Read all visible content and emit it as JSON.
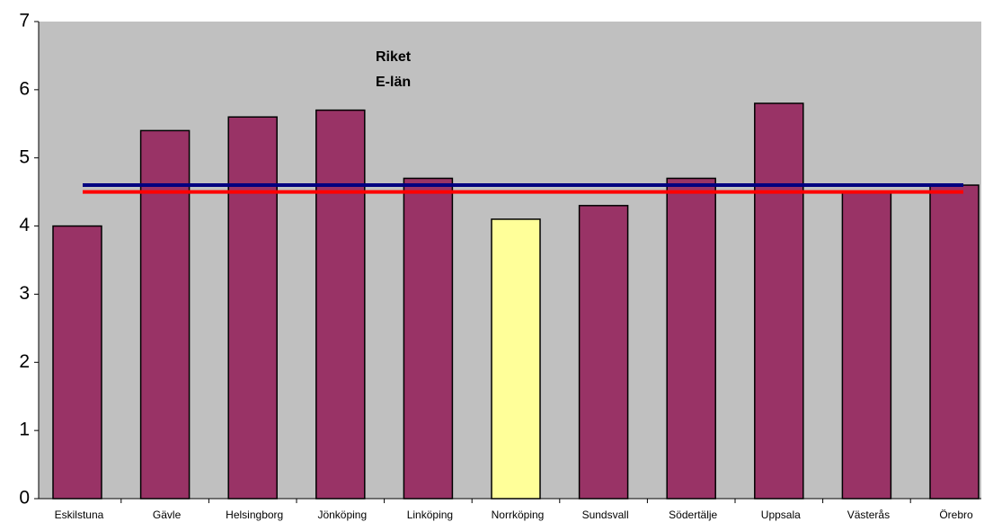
{
  "chart_data": {
    "type": "bar",
    "categories": [
      "Eskilstuna",
      "Gävle",
      "Helsingborg",
      "Jönköping",
      "Linköping",
      "Norrköping",
      "Sundsvall",
      "Södertälje",
      "Uppsala",
      "Västerås",
      "Örebro"
    ],
    "values": [
      4.0,
      5.4,
      5.6,
      5.7,
      4.7,
      4.1,
      4.3,
      4.7,
      5.8,
      4.5,
      4.6
    ],
    "colors": [
      "#993366",
      "#993366",
      "#993366",
      "#993366",
      "#993366",
      "#ffff99",
      "#993366",
      "#993366",
      "#993366",
      "#993366",
      "#993366"
    ],
    "reference_lines": [
      {
        "name": "Riket",
        "color": "#ff0000",
        "value": 4.5
      },
      {
        "name": "E-län",
        "color": "#000080",
        "value": 4.6
      }
    ],
    "ylim": [
      0,
      7
    ],
    "yticks": [
      0,
      1,
      2,
      3,
      4,
      5,
      6,
      7
    ],
    "grid": false
  }
}
